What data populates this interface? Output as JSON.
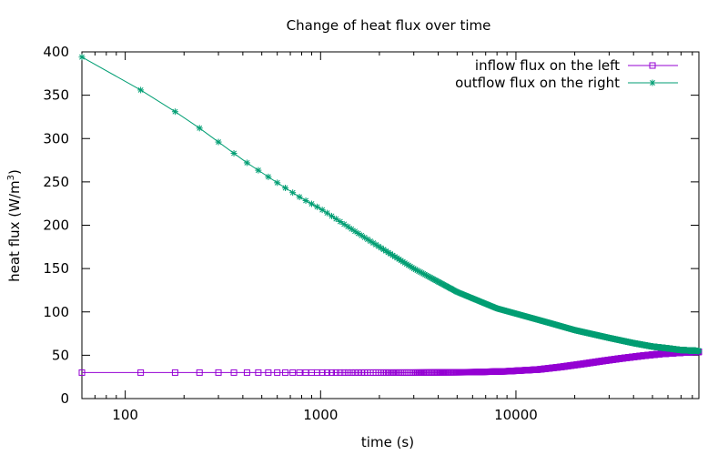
{
  "chart_data": {
    "type": "line",
    "title": "Change of heat flux over time",
    "xlabel": "time (s)",
    "ylabel_main": "heat flux (W/m",
    "ylabel_sup": "3",
    "ylabel_close": ")",
    "xscale": "log",
    "xlim": [
      60,
      86400
    ],
    "ylim": [
      0,
      400
    ],
    "xticks": [
      {
        "value": 100,
        "label": "100"
      },
      {
        "value": 1000,
        "label": "1000"
      },
      {
        "value": 10000,
        "label": "10000"
      }
    ],
    "yticks": [
      {
        "value": 0,
        "label": "0"
      },
      {
        "value": 50,
        "label": "50"
      },
      {
        "value": 100,
        "label": "100"
      },
      {
        "value": 150,
        "label": "150"
      },
      {
        "value": 200,
        "label": "200"
      },
      {
        "value": 250,
        "label": "250"
      },
      {
        "value": 300,
        "label": "300"
      },
      {
        "value": 350,
        "label": "350"
      },
      {
        "value": 400,
        "label": "400"
      }
    ],
    "grid": false,
    "legend_position": "top-right",
    "sample_step": 60,
    "series": [
      {
        "name": "inflow flux on the left",
        "color": "#9400d3",
        "marker": "square",
        "points": [
          [
            60,
            30
          ],
          [
            1000,
            30
          ],
          [
            3000,
            30
          ],
          [
            6000,
            30.5
          ],
          [
            9000,
            31.5
          ],
          [
            13000,
            33.5
          ],
          [
            17000,
            36.5
          ],
          [
            22000,
            40
          ],
          [
            28000,
            43.5
          ],
          [
            35000,
            46.5
          ],
          [
            45000,
            49.5
          ],
          [
            55000,
            51.5
          ],
          [
            70000,
            53
          ],
          [
            86400,
            54
          ]
        ]
      },
      {
        "name": "outflow flux on the right",
        "color": "#009e73",
        "marker": "asterisk",
        "points": [
          [
            60,
            394
          ],
          [
            120,
            356
          ],
          [
            180,
            331
          ],
          [
            240,
            312
          ],
          [
            300,
            296
          ],
          [
            420,
            272
          ],
          [
            600,
            249
          ],
          [
            800,
            231
          ],
          [
            1000,
            219
          ],
          [
            1500,
            193
          ],
          [
            2000,
            175
          ],
          [
            3000,
            150
          ],
          [
            5000,
            123
          ],
          [
            8000,
            104
          ],
          [
            10000,
            98
          ],
          [
            15000,
            87
          ],
          [
            20000,
            79
          ],
          [
            30000,
            70
          ],
          [
            40000,
            64
          ],
          [
            50000,
            60
          ],
          [
            60000,
            58
          ],
          [
            70000,
            56
          ],
          [
            86400,
            55
          ]
        ]
      }
    ]
  }
}
